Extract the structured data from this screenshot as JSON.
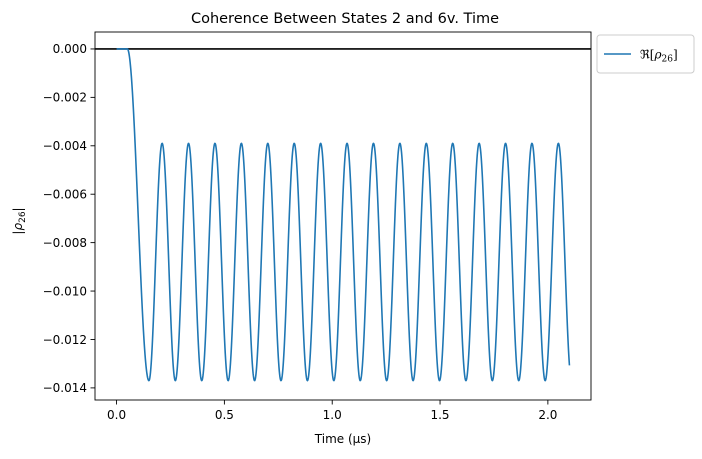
{
  "chart_data": {
    "type": "line",
    "title": "Coherence Between States 2 and 6v. Time",
    "xlabel": "Time (μs)",
    "ylabel": "|ρ26|",
    "xlim": [
      -0.1,
      2.2
    ],
    "ylim": [
      -0.0145,
      0.0007
    ],
    "x_ticks": [
      0.0,
      0.5,
      1.0,
      1.5,
      2.0
    ],
    "x_tick_labels": [
      "0.0",
      "0.5",
      "1.0",
      "1.5",
      "2.0"
    ],
    "y_ticks": [
      0.0,
      -0.002,
      -0.004,
      -0.006,
      -0.008,
      -0.01,
      -0.012,
      -0.014
    ],
    "y_tick_labels": [
      "0.000",
      "−0.002",
      "−0.004",
      "−0.006",
      "−0.008",
      "−0.010",
      "−0.012",
      "−0.014"
    ],
    "reference_line": {
      "y": 0.0,
      "color": "#000000"
    },
    "series": [
      {
        "name": "ℜ[ρ26]",
        "color": "#1f77b4",
        "x_end": 2.1,
        "shape": {
          "flat_until": 0.05,
          "first_min_time": 0.15,
          "period": 0.1225,
          "max_level": -0.0039,
          "min_level": -0.0137,
          "end_value": -0.0124
        },
        "peaks": [
          {
            "x": 0.21,
            "y": -0.0039
          },
          {
            "x": 0.33,
            "y": -0.0038
          },
          {
            "x": 0.45,
            "y": -0.0038
          },
          {
            "x": 0.57,
            "y": -0.0039
          },
          {
            "x": 0.7,
            "y": -0.0038
          },
          {
            "x": 0.82,
            "y": -0.0039
          },
          {
            "x": 0.94,
            "y": -0.0038
          },
          {
            "x": 1.06,
            "y": -0.0039
          },
          {
            "x": 1.18,
            "y": -0.0038
          },
          {
            "x": 1.31,
            "y": -0.0039
          },
          {
            "x": 1.43,
            "y": -0.0038
          },
          {
            "x": 1.55,
            "y": -0.0039
          },
          {
            "x": 1.67,
            "y": -0.0039
          },
          {
            "x": 1.8,
            "y": -0.0039
          },
          {
            "x": 1.92,
            "y": -0.0039
          },
          {
            "x": 2.04,
            "y": -0.0041
          }
        ],
        "troughs": [
          {
            "x": 0.15,
            "y": -0.0137
          },
          {
            "x": 0.27,
            "y": -0.0138
          },
          {
            "x": 0.39,
            "y": -0.0137
          },
          {
            "x": 0.51,
            "y": -0.0138
          },
          {
            "x": 0.64,
            "y": -0.0137
          },
          {
            "x": 0.76,
            "y": -0.0137
          },
          {
            "x": 0.88,
            "y": -0.0138
          },
          {
            "x": 1.0,
            "y": -0.0137
          },
          {
            "x": 1.12,
            "y": -0.0137
          },
          {
            "x": 1.25,
            "y": -0.0137
          },
          {
            "x": 1.37,
            "y": -0.0137
          },
          {
            "x": 1.49,
            "y": -0.0137
          },
          {
            "x": 1.61,
            "y": -0.0137
          },
          {
            "x": 1.73,
            "y": -0.0137
          },
          {
            "x": 1.86,
            "y": -0.0137
          },
          {
            "x": 1.98,
            "y": -0.0137
          }
        ]
      }
    ],
    "legend": {
      "position": "outside-right-top"
    }
  }
}
